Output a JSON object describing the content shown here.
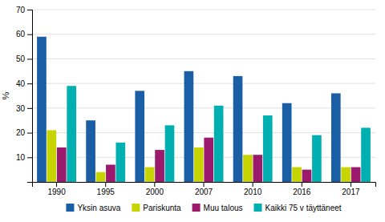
{
  "chart_data": {
    "type": "bar",
    "categories": [
      "1990",
      "1995",
      "2000",
      "2007",
      "2010",
      "2016",
      "2017"
    ],
    "series": [
      {
        "name": "Yksin asuva",
        "color": "#1a5fa6",
        "values": [
          59,
          25,
          37,
          45,
          43,
          32,
          36
        ]
      },
      {
        "name": "Pariskunta",
        "color": "#c8d400",
        "values": [
          21,
          4,
          6,
          14,
          11,
          6,
          6
        ]
      },
      {
        "name": "Muu talous",
        "color": "#9b1a6e",
        "values": [
          14,
          7,
          13,
          18,
          11,
          5,
          6
        ]
      },
      {
        "name": "Kaikki 75 v täyttäneet",
        "color": "#00b0b0",
        "values": [
          39,
          16,
          23,
          31,
          27,
          19,
          22
        ]
      }
    ],
    "y_label": "%",
    "ylim": [
      0,
      70
    ],
    "yticks": [
      10,
      20,
      30,
      40,
      50,
      60,
      70
    ],
    "grid": true,
    "legend": "bottom"
  }
}
